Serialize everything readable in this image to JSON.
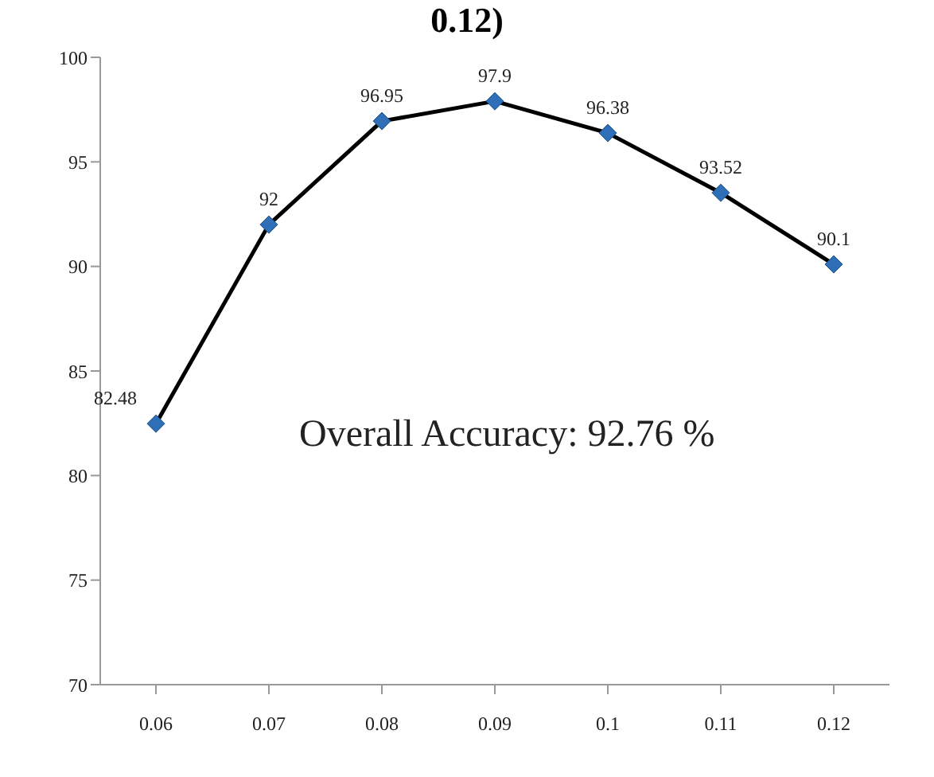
{
  "chart_data": {
    "type": "line",
    "title": "0.12)",
    "categories": [
      "0.06",
      "0.07",
      "0.08",
      "0.09",
      "0.1",
      "0.11",
      "0.12"
    ],
    "series": [
      {
        "color": "#000000",
        "values": [
          82.48,
          92,
          96.95,
          97.9,
          96.38,
          93.52,
          90.1
        ]
      }
    ],
    "marker": "diamond",
    "data_labels": true,
    "ylim": [
      70,
      100
    ],
    "yticks": [
      70,
      75,
      80,
      85,
      90,
      95,
      100
    ],
    "grid": false,
    "annotations": [
      "Overall Accuracy: 92.76 %"
    ]
  }
}
